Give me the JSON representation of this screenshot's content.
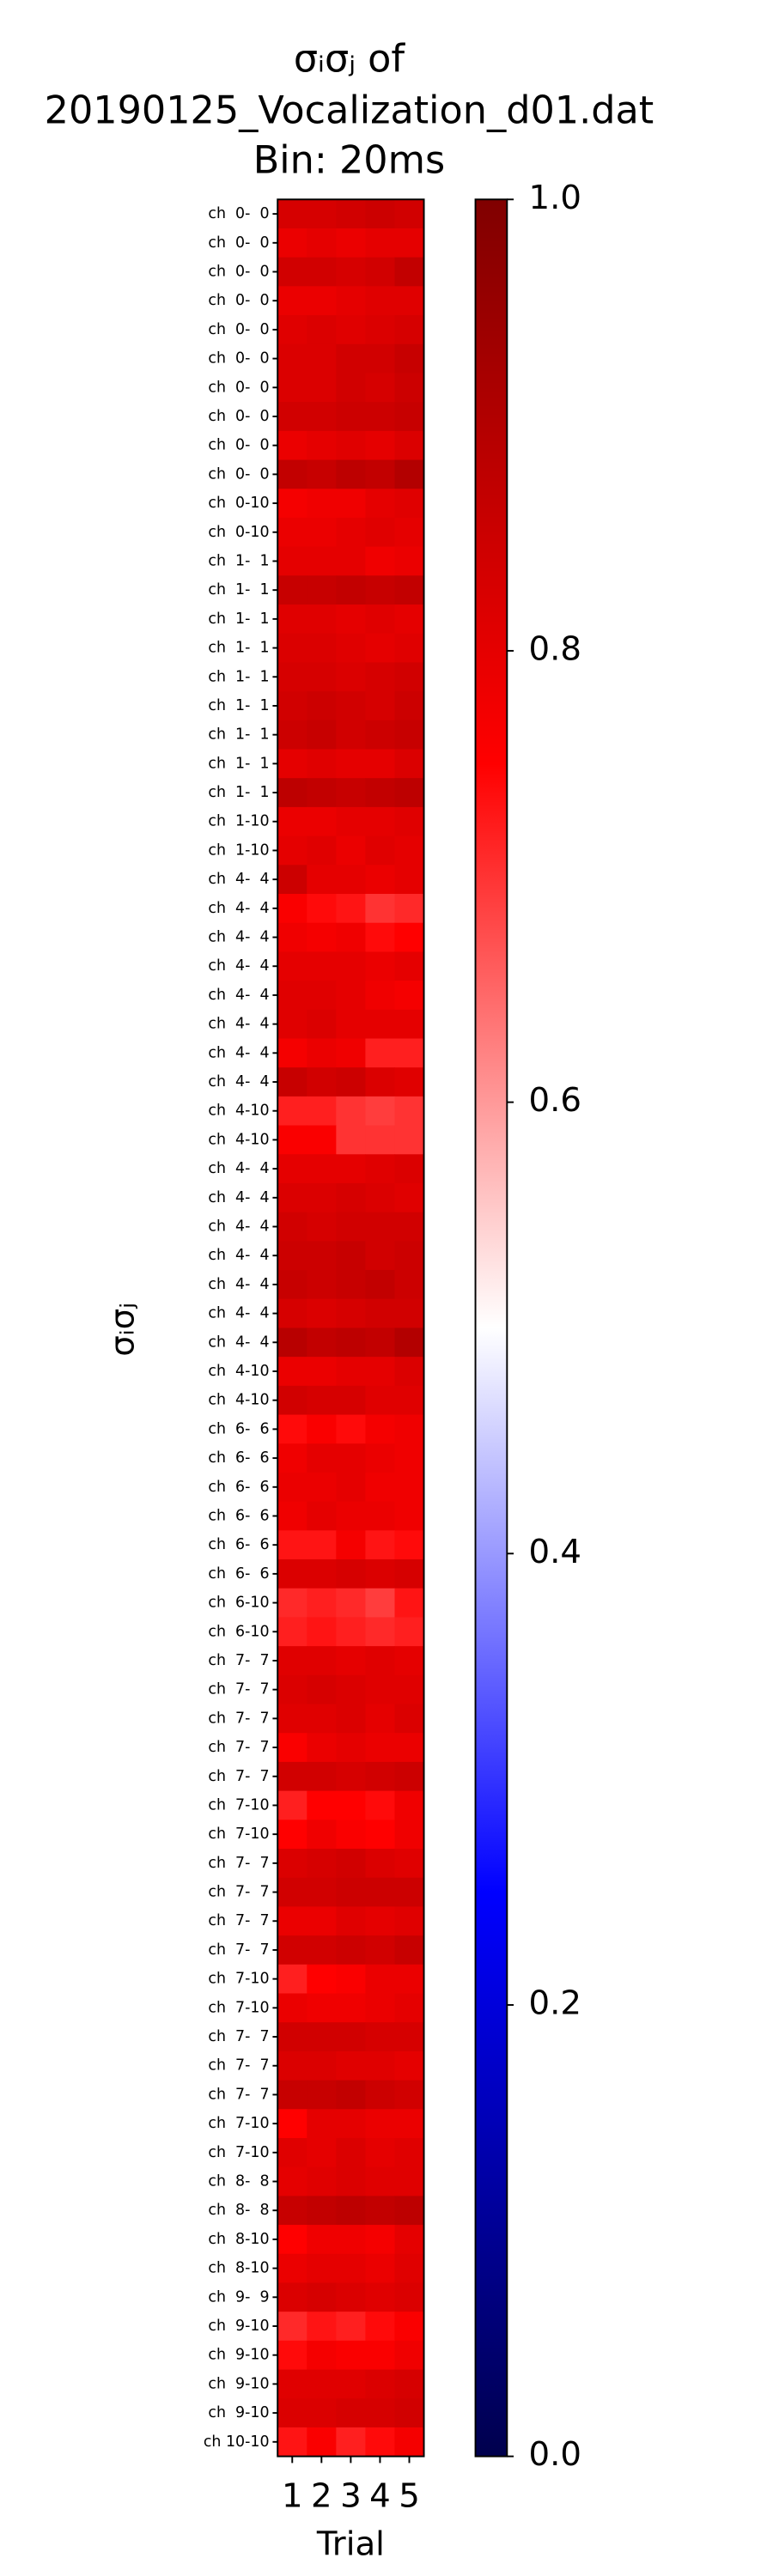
{
  "chart_data": {
    "type": "heatmap",
    "title": [
      "σᵢσⱼ of",
      "20190125_Vocalization_d01.dat",
      "Bin: 20ms"
    ],
    "xlabel": "Trial",
    "ylabel": "σᵢσⱼ",
    "colormap": "seismic",
    "zlim": [
      0,
      1
    ],
    "zticks": [
      {
        "value": 0,
        "label": "0.0"
      },
      0.2,
      0.4,
      0.6,
      0.8,
      {
        "value": 1,
        "label": "1.0"
      }
    ],
    "x": [
      1,
      2,
      3,
      4,
      5
    ],
    "y": [
      "ch  0-  0",
      "ch  0-  0",
      "ch  0-  0",
      "ch  0-  0",
      "ch  0-  0",
      "ch  0-  0",
      "ch  0-  0",
      "ch  0-  0",
      "ch  0-  0",
      "ch  0-  0",
      "ch  0-10",
      "ch  0-10",
      "ch  1-  1",
      "ch  1-  1",
      "ch  1-  1",
      "ch  1-  1",
      "ch  1-  1",
      "ch  1-  1",
      "ch  1-  1",
      "ch  1-  1",
      "ch  1-  1",
      "ch  1-10",
      "ch  1-10",
      "ch  4-  4",
      "ch  4-  4",
      "ch  4-  4",
      "ch  4-  4",
      "ch  4-  4",
      "ch  4-  4",
      "ch  4-  4",
      "ch  4-  4",
      "ch  4-10",
      "ch  4-10",
      "ch  4-  4",
      "ch  4-  4",
      "ch  4-  4",
      "ch  4-  4",
      "ch  4-  4",
      "ch  4-  4",
      "ch  4-  4",
      "ch  4-10",
      "ch  4-10",
      "ch  6-  6",
      "ch  6-  6",
      "ch  6-  6",
      "ch  6-  6",
      "ch  6-  6",
      "ch  6-  6",
      "ch  6-10",
      "ch  6-10",
      "ch  7-  7",
      "ch  7-  7",
      "ch  7-  7",
      "ch  7-  7",
      "ch  7-  7",
      "ch  7-10",
      "ch  7-10",
      "ch  7-  7",
      "ch  7-  7",
      "ch  7-  7",
      "ch  7-  7",
      "ch  7-10",
      "ch  7-10",
      "ch  7-  7",
      "ch  7-  7",
      "ch  7-  7",
      "ch  7-10",
      "ch  7-10",
      "ch  8-  8",
      "ch  8-  8",
      "ch  8-10",
      "ch  8-10",
      "ch  9-  9",
      "ch  9-10",
      "ch  9-10",
      "ch  9-10",
      "ch  9-10",
      "ch 10-10"
    ],
    "values": [
      [
        0.83,
        0.83,
        0.84,
        0.85,
        0.84
      ],
      [
        0.79,
        0.8,
        0.79,
        0.8,
        0.8
      ],
      [
        0.84,
        0.84,
        0.83,
        0.84,
        0.87
      ],
      [
        0.79,
        0.79,
        0.8,
        0.81,
        0.81
      ],
      [
        0.81,
        0.82,
        0.81,
        0.82,
        0.83
      ],
      [
        0.82,
        0.82,
        0.84,
        0.84,
        0.86
      ],
      [
        0.82,
        0.82,
        0.84,
        0.83,
        0.85
      ],
      [
        0.84,
        0.84,
        0.85,
        0.85,
        0.86
      ],
      [
        0.79,
        0.8,
        0.81,
        0.8,
        0.82
      ],
      [
        0.87,
        0.86,
        0.88,
        0.87,
        0.9
      ],
      [
        0.77,
        0.78,
        0.78,
        0.8,
        0.81
      ],
      [
        0.79,
        0.79,
        0.8,
        0.81,
        0.8
      ],
      [
        0.8,
        0.8,
        0.8,
        0.78,
        0.79
      ],
      [
        0.86,
        0.86,
        0.87,
        0.86,
        0.87
      ],
      [
        0.81,
        0.81,
        0.8,
        0.81,
        0.8
      ],
      [
        0.82,
        0.82,
        0.81,
        0.8,
        0.81
      ],
      [
        0.83,
        0.83,
        0.82,
        0.83,
        0.84
      ],
      [
        0.84,
        0.85,
        0.84,
        0.83,
        0.85
      ],
      [
        0.85,
        0.86,
        0.84,
        0.85,
        0.86
      ],
      [
        0.8,
        0.81,
        0.8,
        0.8,
        0.82
      ],
      [
        0.88,
        0.87,
        0.86,
        0.87,
        0.88
      ],
      [
        0.79,
        0.79,
        0.8,
        0.8,
        0.81
      ],
      [
        0.8,
        0.81,
        0.79,
        0.81,
        0.8
      ],
      [
        0.85,
        0.8,
        0.8,
        0.79,
        0.8
      ],
      [
        0.76,
        0.74,
        0.73,
        0.7,
        0.71
      ],
      [
        0.78,
        0.77,
        0.78,
        0.74,
        0.75
      ],
      [
        0.8,
        0.8,
        0.8,
        0.79,
        0.8
      ],
      [
        0.81,
        0.81,
        0.8,
        0.78,
        0.77
      ],
      [
        0.81,
        0.82,
        0.8,
        0.8,
        0.8
      ],
      [
        0.77,
        0.79,
        0.78,
        0.72,
        0.72
      ],
      [
        0.86,
        0.84,
        0.85,
        0.82,
        0.81
      ],
      [
        0.72,
        0.72,
        0.7,
        0.69,
        0.7
      ],
      [
        0.76,
        0.76,
        0.7,
        0.7,
        0.7
      ],
      [
        0.8,
        0.8,
        0.8,
        0.81,
        0.82
      ],
      [
        0.82,
        0.82,
        0.83,
        0.82,
        0.81
      ],
      [
        0.84,
        0.83,
        0.84,
        0.84,
        0.84
      ],
      [
        0.85,
        0.85,
        0.86,
        0.84,
        0.85
      ],
      [
        0.86,
        0.85,
        0.86,
        0.87,
        0.85
      ],
      [
        0.83,
        0.82,
        0.83,
        0.84,
        0.84
      ],
      [
        0.89,
        0.87,
        0.88,
        0.87,
        0.9
      ],
      [
        0.79,
        0.79,
        0.8,
        0.8,
        0.82
      ],
      [
        0.84,
        0.83,
        0.83,
        0.81,
        0.81
      ],
      [
        0.74,
        0.76,
        0.74,
        0.77,
        0.78
      ],
      [
        0.78,
        0.8,
        0.8,
        0.79,
        0.78
      ],
      [
        0.79,
        0.79,
        0.8,
        0.78,
        0.78
      ],
      [
        0.78,
        0.8,
        0.79,
        0.79,
        0.78
      ],
      [
        0.73,
        0.73,
        0.77,
        0.73,
        0.74
      ],
      [
        0.82,
        0.82,
        0.83,
        0.82,
        0.83
      ],
      [
        0.71,
        0.72,
        0.71,
        0.69,
        0.73
      ],
      [
        0.72,
        0.73,
        0.72,
        0.71,
        0.72
      ],
      [
        0.81,
        0.81,
        0.8,
        0.81,
        0.8
      ],
      [
        0.82,
        0.83,
        0.82,
        0.81,
        0.81
      ],
      [
        0.81,
        0.81,
        0.82,
        0.8,
        0.82
      ],
      [
        0.76,
        0.79,
        0.8,
        0.79,
        0.79
      ],
      [
        0.84,
        0.84,
        0.83,
        0.84,
        0.85
      ],
      [
        0.72,
        0.75,
        0.75,
        0.74,
        0.78
      ],
      [
        0.75,
        0.78,
        0.76,
        0.75,
        0.78
      ],
      [
        0.82,
        0.83,
        0.84,
        0.82,
        0.81
      ],
      [
        0.84,
        0.84,
        0.85,
        0.85,
        0.85
      ],
      [
        0.79,
        0.79,
        0.81,
        0.8,
        0.81
      ],
      [
        0.84,
        0.84,
        0.85,
        0.84,
        0.86
      ],
      [
        0.72,
        0.75,
        0.76,
        0.79,
        0.79
      ],
      [
        0.79,
        0.78,
        0.78,
        0.79,
        0.8
      ],
      [
        0.84,
        0.84,
        0.84,
        0.83,
        0.83
      ],
      [
        0.82,
        0.82,
        0.81,
        0.81,
        0.8
      ],
      [
        0.86,
        0.86,
        0.87,
        0.85,
        0.84
      ],
      [
        0.75,
        0.8,
        0.8,
        0.79,
        0.79
      ],
      [
        0.81,
        0.8,
        0.82,
        0.8,
        0.81
      ],
      [
        0.8,
        0.81,
        0.82,
        0.81,
        0.81
      ],
      [
        0.86,
        0.87,
        0.88,
        0.87,
        0.88
      ],
      [
        0.75,
        0.78,
        0.78,
        0.77,
        0.8
      ],
      [
        0.79,
        0.8,
        0.8,
        0.79,
        0.81
      ],
      [
        0.82,
        0.83,
        0.82,
        0.81,
        0.82
      ],
      [
        0.71,
        0.73,
        0.72,
        0.74,
        0.76
      ],
      [
        0.74,
        0.77,
        0.76,
        0.76,
        0.78
      ],
      [
        0.81,
        0.81,
        0.81,
        0.82,
        0.83
      ],
      [
        0.82,
        0.82,
        0.83,
        0.83,
        0.84
      ],
      [
        0.73,
        0.76,
        0.72,
        0.74,
        0.77
      ]
    ]
  }
}
